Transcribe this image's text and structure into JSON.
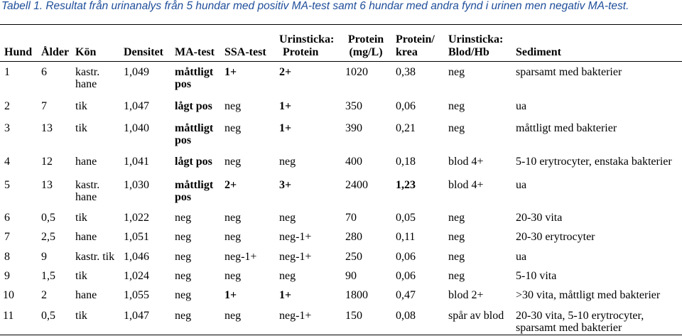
{
  "caption": "Tabell 1. Resultat från urinanalys från 5 hundar med positiv MA-test samt 6 hundar med andra fynd i urinen men negativ MA-test.",
  "headers": {
    "hund": "Hund",
    "alder": "Ålder",
    "kon": "Kön",
    "densitet": "Densitet",
    "ma": "MA-test",
    "ssa": "SSA-test",
    "us_protein_1": "Urinsticka:",
    "us_protein_2": "Protein",
    "protein_1": "Protein",
    "protein_2": "(mg/L)",
    "pkrea_1": "Protein/",
    "pkrea_2": "krea",
    "us_blod_1": "Urinsticka:",
    "us_blod_2": "Blod/Hb",
    "sediment": "Sediment"
  },
  "rows": [
    {
      "hund": "1",
      "alder": "6",
      "kon_1": "kastr.",
      "kon_2": "hane",
      "densitet": "1,049",
      "ma_1": "måttligt",
      "ma_2": "pos",
      "ssa": "1+",
      "us_protein": "2+",
      "protein": "1020",
      "pkrea": "0,38",
      "us_blod": "neg",
      "sediment_1": "sparsamt med bakterier",
      "sediment_2": ""
    },
    {
      "hund": "2",
      "alder": "7",
      "kon_1": "tik",
      "kon_2": "",
      "densitet": "1,047",
      "ma_1": "lågt pos",
      "ma_2": "",
      "ssa": "neg",
      "us_protein": "1+",
      "protein": "350",
      "pkrea": "0,06",
      "us_blod": "neg",
      "sediment_1": "ua",
      "sediment_2": ""
    },
    {
      "hund": "3",
      "alder": "13",
      "kon_1": "tik",
      "kon_2": "",
      "densitet": "1,040",
      "ma_1": "måttligt",
      "ma_2": "pos",
      "ssa": "neg",
      "us_protein": "1+",
      "protein": "390",
      "pkrea": "0,21",
      "us_blod": "neg",
      "sediment_1": "måttligt med bakterier",
      "sediment_2": ""
    },
    {
      "hund": "4",
      "alder": "12",
      "kon_1": "hane",
      "kon_2": "",
      "densitet": "1,041",
      "ma_1": "lågt pos",
      "ma_2": "",
      "ssa": "neg",
      "us_protein": "neg",
      "protein": "400",
      "pkrea": "0,18",
      "us_blod": "blod 4+",
      "sediment_1": "5-10 erytrocyter, enstaka bakterier",
      "sediment_2": ""
    },
    {
      "hund": "5",
      "alder": "13",
      "kon_1": "kastr.",
      "kon_2": "hane",
      "densitet": "1,030",
      "ma_1": "måttligt",
      "ma_2": "pos",
      "ssa": "2+",
      "us_protein": "3+",
      "protein": "2400",
      "pkrea": "1,23",
      "us_blod": "blod 4+",
      "sediment_1": "ua",
      "sediment_2": ""
    },
    {
      "hund": "6",
      "alder": "0,5",
      "kon_1": "tik",
      "kon_2": "",
      "densitet": "1,022",
      "ma_1": "neg",
      "ma_2": "",
      "ssa": "neg",
      "us_protein": "neg",
      "protein": "70",
      "pkrea": "0,05",
      "us_blod": "neg",
      "sediment_1": "20-30 vita",
      "sediment_2": ""
    },
    {
      "hund": "7",
      "alder": "2,5",
      "kon_1": "hane",
      "kon_2": "",
      "densitet": "1,051",
      "ma_1": "neg",
      "ma_2": "",
      "ssa": "neg",
      "us_protein": "neg-1+",
      "protein": "280",
      "pkrea": "0,11",
      "us_blod": "neg",
      "sediment_1": "20-30 erytrocyter",
      "sediment_2": ""
    },
    {
      "hund": "8",
      "alder": "9",
      "kon_1": "kastr. tik",
      "kon_2": "",
      "densitet": "1,046",
      "ma_1": "neg",
      "ma_2": "",
      "ssa": "neg-1+",
      "us_protein": "neg-1+",
      "protein": "250",
      "pkrea": "0,06",
      "us_blod": "neg",
      "sediment_1": "ua",
      "sediment_2": ""
    },
    {
      "hund": "9",
      "alder": "1,5",
      "kon_1": "tik",
      "kon_2": "",
      "densitet": "1,024",
      "ma_1": "neg",
      "ma_2": "",
      "ssa": "neg",
      "us_protein": "neg",
      "protein": "90",
      "pkrea": "0,06",
      "us_blod": "neg",
      "sediment_1": "5-10 vita",
      "sediment_2": ""
    },
    {
      "hund": "10",
      "alder": "2",
      "kon_1": "hane",
      "kon_2": "",
      "densitet": "1,055",
      "ma_1": "neg",
      "ma_2": "",
      "ssa": "1+",
      "us_protein": "1+",
      "protein": "1800",
      "pkrea": "0,47",
      "us_blod": "blod 2+",
      "sediment_1": ">30 vita, måttligt med bakterier",
      "sediment_2": ""
    },
    {
      "hund": "11",
      "alder": "0,5",
      "kon_1": "tik",
      "kon_2": "",
      "densitet": "1,047",
      "ma_1": "neg",
      "ma_2": "",
      "ssa": "neg",
      "us_protein": "neg-1+",
      "protein": "150",
      "pkrea": "0,08",
      "us_blod": "spår av blod",
      "sediment_1": "20-30 vita, 5-10 erytrocyter,",
      "sediment_2": "sparsamt med bakterier"
    }
  ]
}
